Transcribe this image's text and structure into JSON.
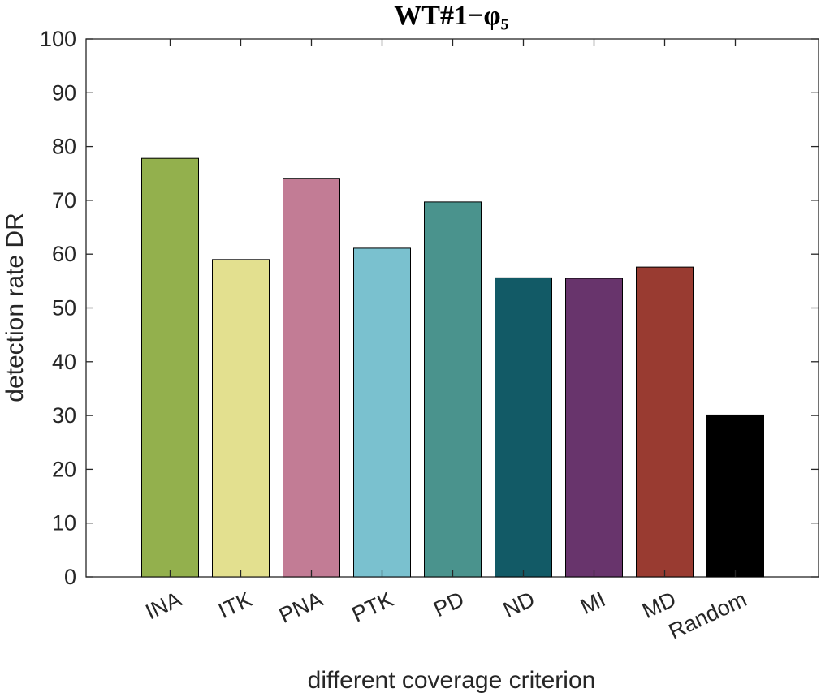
{
  "chart_data": {
    "type": "bar",
    "title": "WT#1−φ₅",
    "xlabel": "different coverage criterion",
    "ylabel": "detection rate DR",
    "ylim": [
      0,
      100
    ],
    "yticks": [
      "0",
      "10",
      "20",
      "30",
      "40",
      "50",
      "60",
      "70",
      "80",
      "90",
      "100"
    ],
    "categories": [
      "INA",
      "ITK",
      "PNA",
      "PTK",
      "PD",
      "ND",
      "MI",
      "MD",
      "Random"
    ],
    "values": [
      77.8,
      59.0,
      74.1,
      61.1,
      69.7,
      55.6,
      55.5,
      57.6,
      30.1
    ],
    "colors": [
      "#93B04D",
      "#E3E08F",
      "#C27C95",
      "#7AC1CF",
      "#4A938D",
      "#125A66",
      "#68346C",
      "#993B31",
      "#000000"
    ],
    "xtick_rotation_deg": -25,
    "grid": false,
    "legend": "none"
  }
}
